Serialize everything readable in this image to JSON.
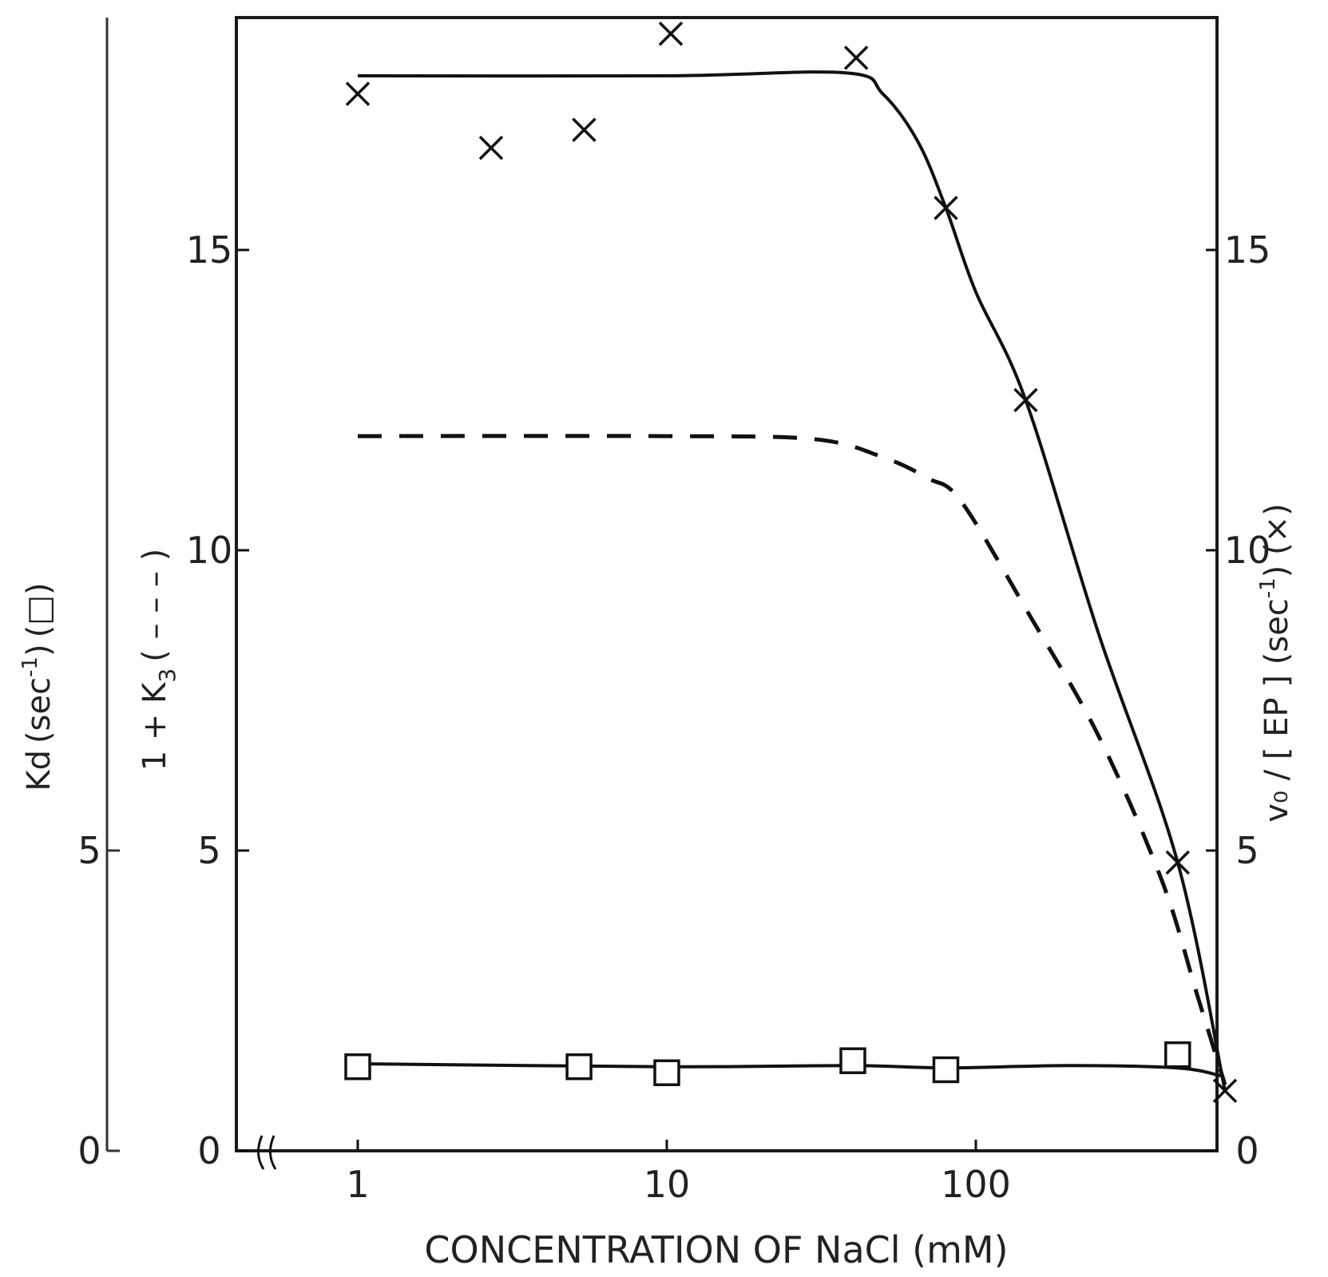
{
  "chart_data": {
    "type": "line",
    "title": "",
    "xlabel": "CONCENTRATION OF NaCl (mM)",
    "x_scale": "log",
    "x_ticks": [
      {
        "value": 1,
        "label": "1"
      },
      {
        "value": 10,
        "label": "10"
      },
      {
        "value": 100,
        "label": "100"
      }
    ],
    "x_axis_break": true,
    "xlim": [
      0.6,
      700
    ],
    "axes": {
      "left_outer": {
        "label_base": "Kd",
        "label_tail": "(sec",
        "label_sup": "-1",
        "label_end": ")",
        "label_marker": "(□)",
        "ticks": [
          "0",
          "5"
        ]
      },
      "left_inner": {
        "label_base": "1 + K",
        "label_sub": "3",
        "label_tail": "( – – – )",
        "ticks": [
          "0",
          "5",
          "10",
          "15"
        ]
      },
      "right": {
        "label_base": "v₀ / [ EP ] (sec",
        "label_sup": "-1",
        "label_end": ") (×)",
        "ticks": [
          "0",
          "5",
          "10",
          "15"
        ]
      }
    },
    "ylim": [
      0,
      18.8
    ],
    "series": [
      {
        "style": "solid-with-x-markers",
        "axis": "right",
        "points": [
          {
            "x": 1,
            "y": 17.6
          },
          {
            "x": 2.7,
            "y": 16.7
          },
          {
            "x": 5.4,
            "y": 17.0
          },
          {
            "x": 10.3,
            "y": 18.6
          },
          {
            "x": 41,
            "y": 18.2
          },
          {
            "x": 80,
            "y": 15.7
          },
          {
            "x": 145,
            "y": 12.5
          },
          {
            "x": 450,
            "y": 4.8
          },
          {
            "x": 640,
            "y": 1.0
          }
        ],
        "curve": [
          {
            "x": 1,
            "y": 17.9
          },
          {
            "x": 10,
            "y": 17.9
          },
          {
            "x": 38,
            "y": 17.95
          },
          {
            "x": 50,
            "y": 17.6
          },
          {
            "x": 65,
            "y": 16.8
          },
          {
            "x": 80,
            "y": 15.7
          },
          {
            "x": 100,
            "y": 14.3
          },
          {
            "x": 145,
            "y": 12.5
          },
          {
            "x": 250,
            "y": 8.6
          },
          {
            "x": 450,
            "y": 4.8
          },
          {
            "x": 640,
            "y": 1.0
          }
        ]
      },
      {
        "style": "dashed",
        "axis": "left_inner",
        "curve": [
          {
            "x": 1,
            "y": 11.9
          },
          {
            "x": 10,
            "y": 11.9
          },
          {
            "x": 30,
            "y": 11.85
          },
          {
            "x": 50,
            "y": 11.55
          },
          {
            "x": 70,
            "y": 11.2
          },
          {
            "x": 90,
            "y": 10.8
          },
          {
            "x": 150,
            "y": 8.9
          },
          {
            "x": 250,
            "y": 6.9
          },
          {
            "x": 400,
            "y": 4.5
          },
          {
            "x": 520,
            "y": 2.6
          },
          {
            "x": 640,
            "y": 1.1
          }
        ]
      },
      {
        "style": "solid-with-square-markers",
        "axis": "left_outer",
        "points": [
          {
            "x": 1,
            "y": 1.4
          },
          {
            "x": 5.2,
            "y": 1.4
          },
          {
            "x": 10,
            "y": 1.3
          },
          {
            "x": 40,
            "y": 1.5
          },
          {
            "x": 80,
            "y": 1.35
          },
          {
            "x": 450,
            "y": 1.6
          }
        ],
        "curve": [
          {
            "x": 1,
            "y": 1.45
          },
          {
            "x": 10,
            "y": 1.4
          },
          {
            "x": 40,
            "y": 1.42
          },
          {
            "x": 80,
            "y": 1.38
          },
          {
            "x": 200,
            "y": 1.42
          },
          {
            "x": 450,
            "y": 1.38
          },
          {
            "x": 620,
            "y": 1.25
          }
        ]
      }
    ]
  }
}
